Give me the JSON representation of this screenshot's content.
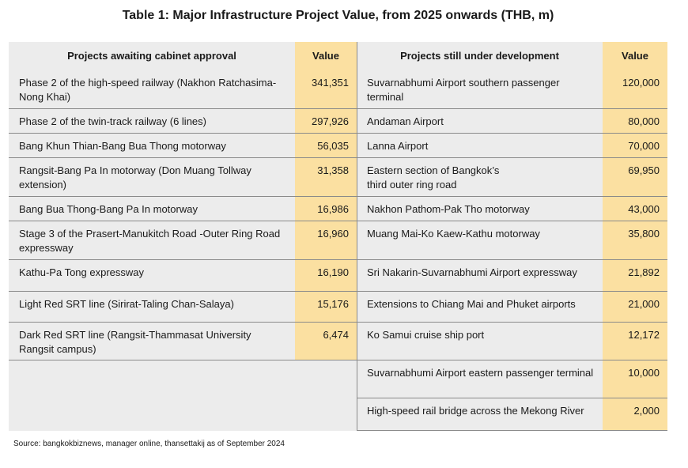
{
  "title": "Table 1: Major Infrastructure Project Value, from 2025 onwards (THB, m)",
  "left_table": {
    "header_project": "Projects awaiting cabinet approval",
    "header_value": "Value",
    "rows": [
      {
        "project": "Phase 2 of the high-speed railway (Nakhon Ratchasima-Nong Khai)",
        "value": "341,351"
      },
      {
        "project": "Phase 2 of the twin-track railway (6 lines)",
        "value": "297,926"
      },
      {
        "project": "Bang Khun Thian-Bang Bua Thong motorway",
        "value": "56,035"
      },
      {
        "project": "Rangsit-Bang Pa In motorway (Don Muang Tollway extension)",
        "value": "31,358"
      },
      {
        "project": "Bang Bua Thong-Bang Pa In motorway",
        "value": "16,986"
      },
      {
        "project": "Stage 3 of the Prasert-Manukitch Road -Outer Ring Road expressway",
        "value": "16,960"
      },
      {
        "project": "Kathu-Pa Tong expressway",
        "value": "16,190"
      },
      {
        "project": "Light Red SRT line (Sirirat-Taling Chan-Salaya)",
        "value": "15,176"
      },
      {
        "project": "Dark Red SRT line (Rangsit-Thammasat University Rangsit campus)",
        "value": "6,474"
      }
    ]
  },
  "right_table": {
    "header_project": "Projects still under development",
    "header_value": "Value",
    "rows": [
      {
        "project": "Suvarnabhumi Airport southern passenger terminal",
        "value": "120,000"
      },
      {
        "project": "Andaman Airport",
        "value": "80,000"
      },
      {
        "project": "Lanna Airport",
        "value": "70,000"
      },
      {
        "project": "Eastern section of Bangkok’s\nthird outer ring road",
        "value": "69,950"
      },
      {
        "project": "Nakhon Pathom-Pak Tho motorway",
        "value": "43,000"
      },
      {
        "project": "Muang Mai-Ko Kaew-Kathu motorway",
        "value": "35,800"
      },
      {
        "project": "Sri Nakarin-Suvarnabhumi Airport expressway",
        "value": "21,892"
      },
      {
        "project": "Extensions to Chiang Mai and Phuket airports",
        "value": "21,000"
      },
      {
        "project": "Ko Samui cruise ship port",
        "value": "12,172"
      },
      {
        "project": "Suvarnabhumi Airport eastern passenger terminal",
        "value": "10,000"
      },
      {
        "project": "High-speed rail bridge across the Mekong River",
        "value": "2,000"
      }
    ]
  },
  "source": "Source: bangkokbiznews, manager online, thansettakij as of September 2024",
  "colors": {
    "name_bg": "#ececec",
    "value_bg": "#fbe0a1",
    "divider": "#8a8a8a"
  }
}
